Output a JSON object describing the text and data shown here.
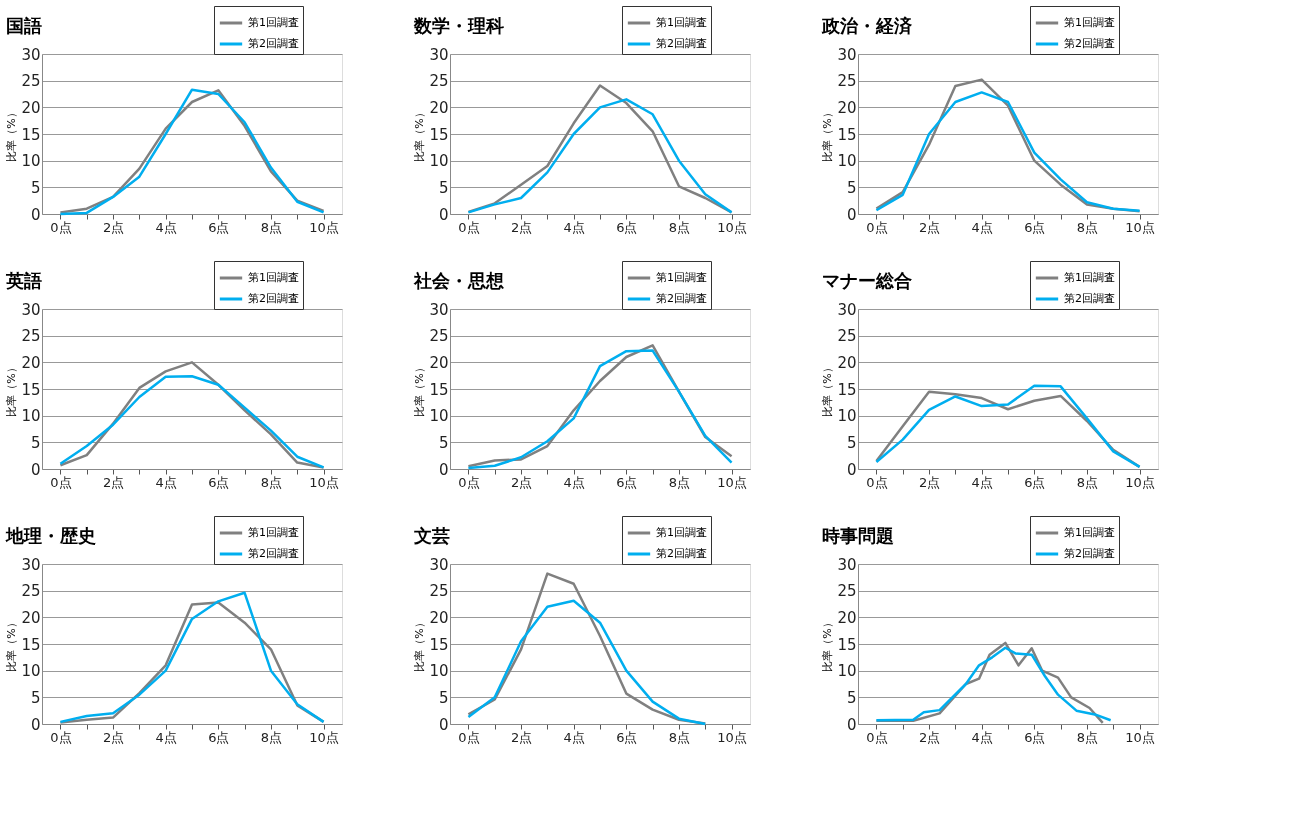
{
  "chart_data": [
    {
      "type": "line",
      "title": "国語",
      "ylabel": "比率（%）",
      "xlim": [
        -0.7,
        10.7
      ],
      "ylim": [
        0,
        30
      ],
      "yticks": [
        0,
        5,
        10,
        15,
        20,
        25,
        30
      ],
      "xticks": [
        {
          "value": 0,
          "label": "0点"
        },
        {
          "value": 1,
          "label": null
        },
        {
          "value": 2,
          "label": "2点"
        },
        {
          "value": 3,
          "label": null
        },
        {
          "value": 4,
          "label": "4点"
        },
        {
          "value": 5,
          "label": null
        },
        {
          "value": 6,
          "label": "6点"
        },
        {
          "value": 7,
          "label": null
        },
        {
          "value": 8,
          "label": "8点"
        },
        {
          "value": 9,
          "label": null
        },
        {
          "value": 10,
          "label": "10点"
        }
      ],
      "grid": "y",
      "legend": "top right",
      "x": [
        0,
        1,
        2,
        3,
        4,
        5,
        6,
        7,
        8,
        9,
        10
      ],
      "series": [
        {
          "name": "第1回調査",
          "color": "#808080",
          "values": [
            0.3,
            1.0,
            3.2,
            8.5,
            16,
            21,
            23.2,
            16.5,
            8,
            2.5,
            0.6
          ]
        },
        {
          "name": "第2回調査",
          "color": "#00aeef",
          "values": [
            0,
            0.2,
            3.2,
            7,
            15,
            23.3,
            22.5,
            17.2,
            8.7,
            2.3,
            0.3
          ]
        }
      ]
    },
    {
      "type": "line",
      "title": "数学・理科",
      "ylabel": "比率（%）",
      "xlim": [
        -0.7,
        10.7
      ],
      "ylim": [
        0,
        30
      ],
      "yticks": [
        0,
        5,
        10,
        15,
        20,
        25,
        30
      ],
      "xticks": [
        {
          "value": 0,
          "label": "0点"
        },
        {
          "value": 1,
          "label": null
        },
        {
          "value": 2,
          "label": "2点"
        },
        {
          "value": 3,
          "label": null
        },
        {
          "value": 4,
          "label": "4点"
        },
        {
          "value": 5,
          "label": null
        },
        {
          "value": 6,
          "label": "6点"
        },
        {
          "value": 7,
          "label": null
        },
        {
          "value": 8,
          "label": "8点"
        },
        {
          "value": 9,
          "label": null
        },
        {
          "value": 10,
          "label": "10点"
        }
      ],
      "grid": "y",
      "legend": "top right",
      "x": [
        0,
        1,
        2,
        3,
        4,
        5,
        6,
        7,
        8,
        9,
        10
      ],
      "series": [
        {
          "name": "第1回調査",
          "color": "#808080",
          "values": [
            0.4,
            2.0,
            5.5,
            9,
            17,
            24.1,
            20.8,
            15.5,
            5.2,
            3,
            0.3
          ]
        },
        {
          "name": "第2回調査",
          "color": "#00aeef",
          "values": [
            0.3,
            1.8,
            3,
            7.8,
            15,
            20,
            21.5,
            18.7,
            10,
            3.7,
            0.3
          ]
        }
      ]
    },
    {
      "type": "line",
      "title": "政治・経済",
      "ylabel": "比率（%）",
      "xlim": [
        -0.7,
        10.7
      ],
      "ylim": [
        0,
        30
      ],
      "yticks": [
        0,
        5,
        10,
        15,
        20,
        25,
        30
      ],
      "xticks": [
        {
          "value": 0,
          "label": "0点"
        },
        {
          "value": 1,
          "label": null
        },
        {
          "value": 2,
          "label": "2点"
        },
        {
          "value": 3,
          "label": null
        },
        {
          "value": 4,
          "label": "4点"
        },
        {
          "value": 5,
          "label": null
        },
        {
          "value": 6,
          "label": "6点"
        },
        {
          "value": 7,
          "label": null
        },
        {
          "value": 8,
          "label": "8点"
        },
        {
          "value": 9,
          "label": null
        },
        {
          "value": 10,
          "label": "10点"
        }
      ],
      "grid": "y",
      "legend": "top right",
      "x": [
        0,
        1,
        2,
        3,
        4,
        5,
        6,
        7,
        8,
        9,
        10
      ],
      "series": [
        {
          "name": "第1回調査",
          "color": "#808080",
          "values": [
            1,
            4.1,
            13,
            24,
            25.2,
            20.3,
            10,
            5.5,
            1.8,
            1,
            0.5
          ]
        },
        {
          "name": "第2回調査",
          "color": "#00aeef",
          "values": [
            0.7,
            3.6,
            15,
            21,
            22.8,
            21,
            11.5,
            6.5,
            2.2,
            1,
            0.6
          ]
        }
      ]
    },
    {
      "type": "line",
      "title": "英語",
      "ylabel": "比率（%）",
      "xlim": [
        -0.7,
        10.7
      ],
      "ylim": [
        0,
        30
      ],
      "yticks": [
        0,
        5,
        10,
        15,
        20,
        25,
        30
      ],
      "xticks": [
        {
          "value": 0,
          "label": "0点"
        },
        {
          "value": 1,
          "label": null
        },
        {
          "value": 2,
          "label": "2点"
        },
        {
          "value": 3,
          "label": null
        },
        {
          "value": 4,
          "label": "4点"
        },
        {
          "value": 5,
          "label": null
        },
        {
          "value": 6,
          "label": "6点"
        },
        {
          "value": 7,
          "label": null
        },
        {
          "value": 8,
          "label": "8点"
        },
        {
          "value": 9,
          "label": null
        },
        {
          "value": 10,
          "label": "10点"
        }
      ],
      "grid": "y",
      "legend": "top right",
      "x": [
        0,
        1,
        2,
        3,
        4,
        5,
        6,
        7,
        8,
        9,
        10
      ],
      "series": [
        {
          "name": "第1回調査",
          "color": "#808080",
          "values": [
            0.7,
            2.6,
            8.5,
            15.2,
            18.3,
            20,
            15.8,
            11,
            6.5,
            1.2,
            0.3
          ]
        },
        {
          "name": "第2回調査",
          "color": "#00aeef",
          "values": [
            1,
            4.3,
            8.3,
            13.5,
            17.3,
            17.4,
            15.8,
            11.5,
            7.2,
            2.3,
            0.3
          ]
        }
      ]
    },
    {
      "type": "line",
      "title": "社会・思想",
      "ylabel": "比率（%）",
      "xlim": [
        -0.7,
        10.7
      ],
      "ylim": [
        0,
        30
      ],
      "yticks": [
        0,
        5,
        10,
        15,
        20,
        25,
        30
      ],
      "xticks": [
        {
          "value": 0,
          "label": "0点"
        },
        {
          "value": 1,
          "label": null
        },
        {
          "value": 2,
          "label": "2点"
        },
        {
          "value": 3,
          "label": null
        },
        {
          "value": 4,
          "label": "4点"
        },
        {
          "value": 5,
          "label": null
        },
        {
          "value": 6,
          "label": "6点"
        },
        {
          "value": 7,
          "label": null
        },
        {
          "value": 8,
          "label": "8点"
        },
        {
          "value": 9,
          "label": null
        },
        {
          "value": 10,
          "label": "10点"
        }
      ],
      "grid": "y",
      "legend": "top right",
      "x": [
        0,
        1,
        2,
        3,
        4,
        5,
        6,
        7,
        8,
        9,
        10
      ],
      "series": [
        {
          "name": "第1回調査",
          "color": "#808080",
          "values": [
            0.5,
            1.6,
            1.8,
            4.3,
            11,
            16.5,
            21,
            23.2,
            14.5,
            6,
            2.4
          ]
        },
        {
          "name": "第2回調査",
          "color": "#00aeef",
          "values": [
            0.2,
            0.6,
            2.2,
            5.2,
            9.5,
            19.3,
            22.1,
            22.2,
            14.5,
            6.2,
            1.2
          ]
        }
      ]
    },
    {
      "type": "line",
      "title": "マナー総合",
      "ylabel": "比率（%）",
      "xlim": [
        -0.7,
        10.7
      ],
      "ylim": [
        0,
        30
      ],
      "yticks": [
        0,
        5,
        10,
        15,
        20,
        25,
        30
      ],
      "xticks": [
        {
          "value": 0,
          "label": "0点"
        },
        {
          "value": 1,
          "label": null
        },
        {
          "value": 2,
          "label": "2点"
        },
        {
          "value": 3,
          "label": null
        },
        {
          "value": 4,
          "label": "4点"
        },
        {
          "value": 5,
          "label": null
        },
        {
          "value": 6,
          "label": "6点"
        },
        {
          "value": 7,
          "label": null
        },
        {
          "value": 8,
          "label": "8点"
        },
        {
          "value": 9,
          "label": null
        },
        {
          "value": 10,
          "label": "10点"
        }
      ],
      "grid": "y",
      "legend": "top right",
      "x": [
        0,
        1,
        2,
        3,
        4,
        5,
        6,
        7,
        8,
        9,
        10
      ],
      "series": [
        {
          "name": "第1回調査",
          "color": "#808080",
          "values": [
            1.5,
            8,
            14.5,
            14,
            13.3,
            11.2,
            12.8,
            13.7,
            9,
            3.6,
            0.4
          ]
        },
        {
          "name": "第2回調査",
          "color": "#00aeef",
          "values": [
            1.3,
            5.5,
            11.1,
            13.6,
            11.8,
            12.1,
            15.6,
            15.5,
            9.5,
            3.3,
            0.4
          ]
        }
      ]
    },
    {
      "type": "line",
      "title": "地理・歴史",
      "ylabel": "比率（%）",
      "xlim": [
        -0.7,
        10.7
      ],
      "ylim": [
        0,
        30
      ],
      "yticks": [
        0,
        5,
        10,
        15,
        20,
        25,
        30
      ],
      "xticks": [
        {
          "value": 0,
          "label": "0点"
        },
        {
          "value": 1,
          "label": null
        },
        {
          "value": 2,
          "label": "2点"
        },
        {
          "value": 3,
          "label": null
        },
        {
          "value": 4,
          "label": "4点"
        },
        {
          "value": 5,
          "label": null
        },
        {
          "value": 6,
          "label": "6点"
        },
        {
          "value": 7,
          "label": null
        },
        {
          "value": 8,
          "label": "8点"
        },
        {
          "value": 9,
          "label": null
        },
        {
          "value": 10,
          "label": "10点"
        }
      ],
      "grid": "y",
      "legend": "top right",
      "x": [
        0,
        1,
        2,
        3,
        4,
        5,
        6,
        7,
        8,
        9,
        10
      ],
      "series": [
        {
          "name": "第1回調査",
          "color": "#808080",
          "values": [
            0.3,
            0.8,
            1.2,
            5.8,
            11,
            22.4,
            22.8,
            19,
            14,
            3.5,
            0.4
          ]
        },
        {
          "name": "第2回調査",
          "color": "#00aeef",
          "values": [
            0.4,
            1.5,
            2,
            5.5,
            10,
            19.7,
            23,
            24.6,
            10,
            3.7,
            0.4
          ]
        }
      ]
    },
    {
      "type": "line",
      "title": "文芸",
      "ylabel": "比率（%）",
      "xlim": [
        -0.7,
        10.7
      ],
      "ylim": [
        0,
        30
      ],
      "yticks": [
        0,
        5,
        10,
        15,
        20,
        25,
        30
      ],
      "xticks": [
        {
          "value": 0,
          "label": "0点"
        },
        {
          "value": 1,
          "label": null
        },
        {
          "value": 2,
          "label": "2点"
        },
        {
          "value": 3,
          "label": null
        },
        {
          "value": 4,
          "label": "4点"
        },
        {
          "value": 5,
          "label": null
        },
        {
          "value": 6,
          "label": "6点"
        },
        {
          "value": 7,
          "label": null
        },
        {
          "value": 8,
          "label": "8点"
        },
        {
          "value": 9,
          "label": null
        },
        {
          "value": 10,
          "label": "10点"
        }
      ],
      "grid": "y",
      "legend": "top right",
      "x": [
        0,
        1,
        2,
        3,
        4,
        5,
        6,
        7,
        8,
        9
      ],
      "series": [
        {
          "name": "第1回調査",
          "color": "#808080",
          "values": [
            1.8,
            4.6,
            14,
            28.2,
            26.3,
            16.5,
            5.7,
            2.7,
            0.8,
            0.1
          ]
        },
        {
          "name": "第2回調査",
          "color": "#00aeef",
          "values": [
            1.3,
            5,
            15.5,
            22,
            23.1,
            19,
            10,
            4.2,
            1,
            0
          ]
        }
      ]
    },
    {
      "type": "line",
      "title": "時事問題",
      "ylabel": "比率（%）",
      "xlim": [
        -0.7,
        10.7
      ],
      "ylim": [
        0,
        30
      ],
      "yticks": [
        0,
        5,
        10,
        15,
        20,
        25,
        30
      ],
      "xticks": [
        {
          "value": 0,
          "label": "0点"
        },
        {
          "value": 1,
          "label": null
        },
        {
          "value": 2,
          "label": "2点"
        },
        {
          "value": 3,
          "label": null
        },
        {
          "value": 4,
          "label": "4点"
        },
        {
          "value": 5,
          "label": null
        },
        {
          "value": 6,
          "label": "6点"
        },
        {
          "value": 7,
          "label": null
        },
        {
          "value": 8,
          "label": "8点"
        },
        {
          "value": 9,
          "label": null
        },
        {
          "value": 10,
          "label": "10点"
        }
      ],
      "grid": "y",
      "legend": "top right",
      "series": [
        {
          "name": "第1回調査",
          "color": "#808080",
          "x": [
            0,
            1.4,
            2.4,
            3.4,
            3.9,
            4.3,
            4.9,
            5.4,
            5.9,
            6.3,
            6.9,
            7.4,
            8.1,
            8.6
          ],
          "values": [
            0.6,
            0.6,
            2,
            7.5,
            8.5,
            13,
            15.2,
            11,
            14.2,
            10,
            8.7,
            5,
            3,
            0.2
          ]
        },
        {
          "name": "第2回調査",
          "color": "#00aeef",
          "x": [
            0,
            1.4,
            1.8,
            2.4,
            3.4,
            3.9,
            4.4,
            4.9,
            5.3,
            5.9,
            6.4,
            6.9,
            7.6,
            8.3,
            8.9
          ],
          "values": [
            0.7,
            0.8,
            2.2,
            2.6,
            7.5,
            11,
            12.5,
            14.3,
            13.2,
            13,
            9,
            5.5,
            2.5,
            1.8,
            0.7
          ]
        }
      ]
    }
  ]
}
